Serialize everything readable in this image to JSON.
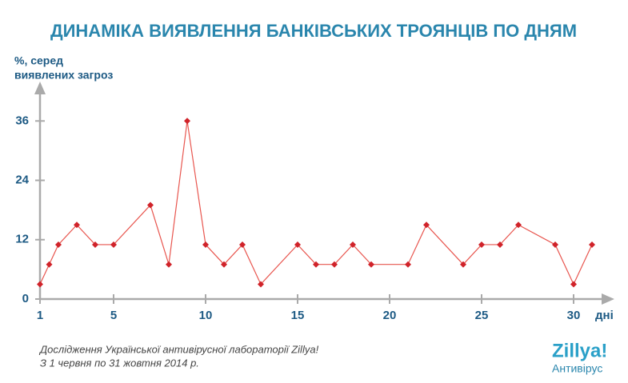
{
  "chart_data": {
    "type": "line",
    "title": "ДИНАМІКА ВИЯВЛЕННЯ БАНКІВСЬКИХ ТРОЯНЦІВ ПО ДНЯМ",
    "y_label": [
      "%, серед",
      "виявлених загроз"
    ],
    "x_label": "дні",
    "x": [
      1,
      1.5,
      2,
      3,
      4,
      5,
      7,
      8,
      9,
      10,
      11,
      12,
      13,
      15,
      16,
      17,
      18,
      19,
      21,
      22,
      24,
      25,
      26,
      27,
      29,
      30,
      31
    ],
    "values": [
      3,
      7,
      11,
      15,
      11,
      11,
      19,
      7,
      36,
      11,
      7,
      11,
      3,
      11,
      7,
      7,
      11,
      7,
      7,
      15,
      7,
      11,
      11,
      15,
      11,
      3,
      11
    ],
    "color": "#e8554e",
    "marker_color": "#d0232a",
    "xlim": [
      1,
      32
    ],
    "xticks": [
      1,
      5,
      10,
      15,
      20,
      25,
      30
    ],
    "ylim": [
      0,
      43
    ],
    "yticks": [
      0,
      12,
      24,
      36
    ],
    "footnote": [
      "Дослідження Української антивірусної лабораторії Zillya!",
      "З 1 червня по 31 жовтня 2014 р."
    ],
    "logo": {
      "brand": "Zillya!",
      "product": "Антивірус"
    }
  }
}
